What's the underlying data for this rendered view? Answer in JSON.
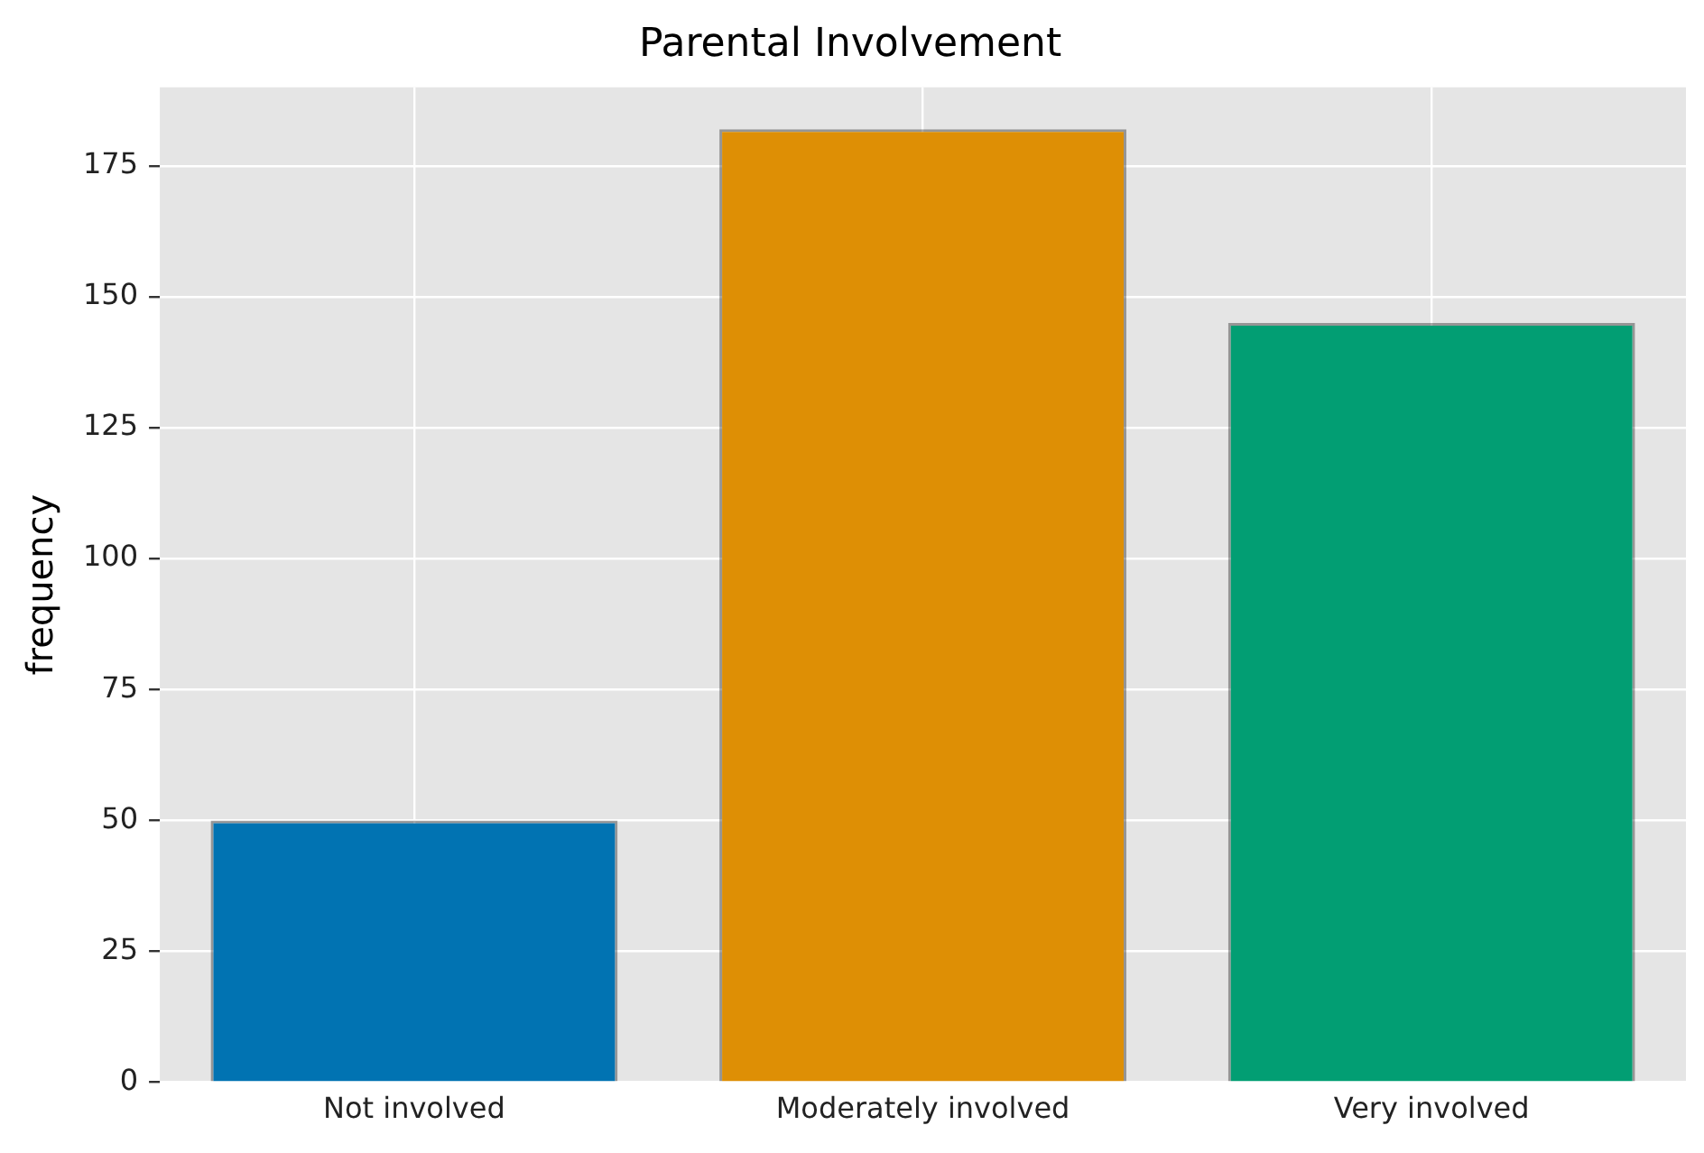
{
  "chart_data": {
    "type": "bar",
    "title": "Parental Involvement",
    "ylabel": "frequency",
    "categories": [
      "Not involved",
      "Moderately involved",
      "Very involved"
    ],
    "values": [
      50,
      182,
      145
    ],
    "colors": [
      "#0173b2",
      "#de8f05",
      "#029e73"
    ],
    "ylim": [
      0,
      190
    ],
    "yticks": [
      0,
      25,
      50,
      75,
      100,
      125,
      150,
      175
    ],
    "grid": true
  }
}
